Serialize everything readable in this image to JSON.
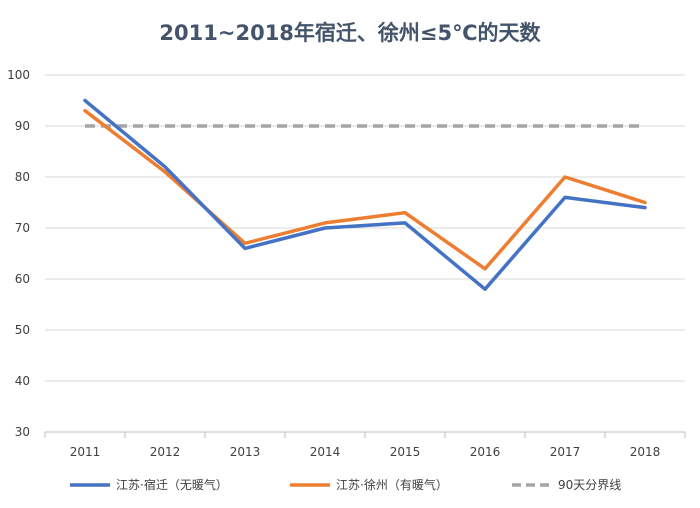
{
  "chart_data": {
    "type": "line",
    "title": "2011~2018年宿迁、徐州≤5℃的天数",
    "xlabel": "",
    "ylabel": "",
    "categories": [
      "2011",
      "2012",
      "2013",
      "2014",
      "2015",
      "2016",
      "2017",
      "2018"
    ],
    "ylim": [
      30,
      100
    ],
    "yticks": [
      30,
      40,
      50,
      60,
      70,
      80,
      90,
      100
    ],
    "grid": true,
    "legend_position": "bottom",
    "series": [
      {
        "name": "江苏·宿迁（无暖气）",
        "values": [
          95,
          82,
          66,
          70,
          71,
          58,
          76,
          74
        ],
        "color": "#4472c4",
        "style": "solid"
      },
      {
        "name": "江苏·徐州（有暖气）",
        "values": [
          93,
          81,
          67,
          71,
          73,
          62,
          80,
          75
        ],
        "color": "#ed7d31",
        "style": "solid"
      },
      {
        "name": "90天分界线",
        "values": [
          90,
          90,
          90,
          90,
          90,
          90,
          90,
          90
        ],
        "color": "#a5a5a5",
        "style": "dashed"
      }
    ]
  }
}
